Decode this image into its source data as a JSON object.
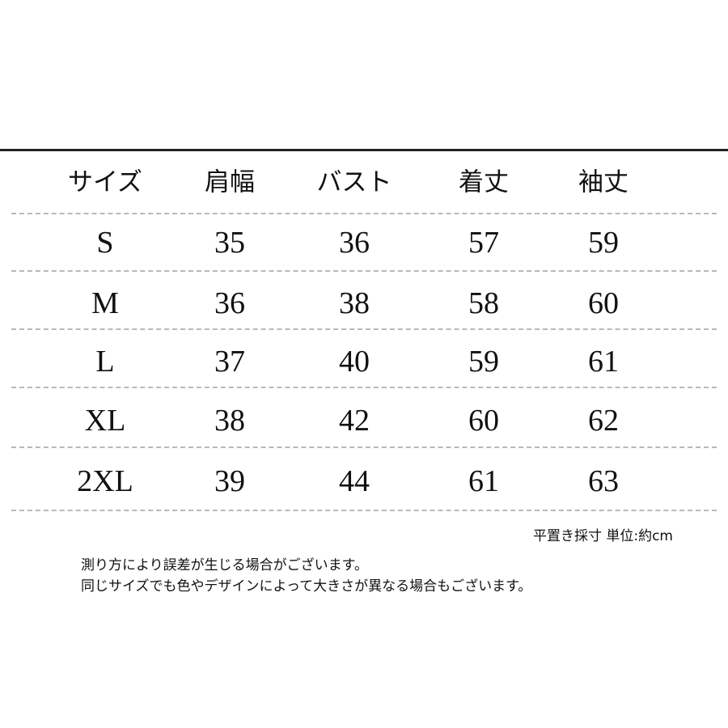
{
  "table": {
    "headers": [
      "サイズ",
      "肩幅",
      "バスト",
      "着丈",
      "袖丈"
    ],
    "rows": [
      [
        "S",
        "35",
        "36",
        "57",
        "59"
      ],
      [
        "M",
        "36",
        "38",
        "58",
        "60"
      ],
      [
        "L",
        "37",
        "40",
        "59",
        "61"
      ],
      [
        "XL",
        "38",
        "42",
        "60",
        "62"
      ],
      [
        "2XL",
        "39",
        "44",
        "61",
        "63"
      ]
    ]
  },
  "notes": {
    "unit": "平置き採寸  単位:約cm",
    "line1": "測り方により誤差が生じる場合がございます。",
    "line2": "同じサイズでも色やデザインによって大きさが異なる場合もございます。"
  }
}
